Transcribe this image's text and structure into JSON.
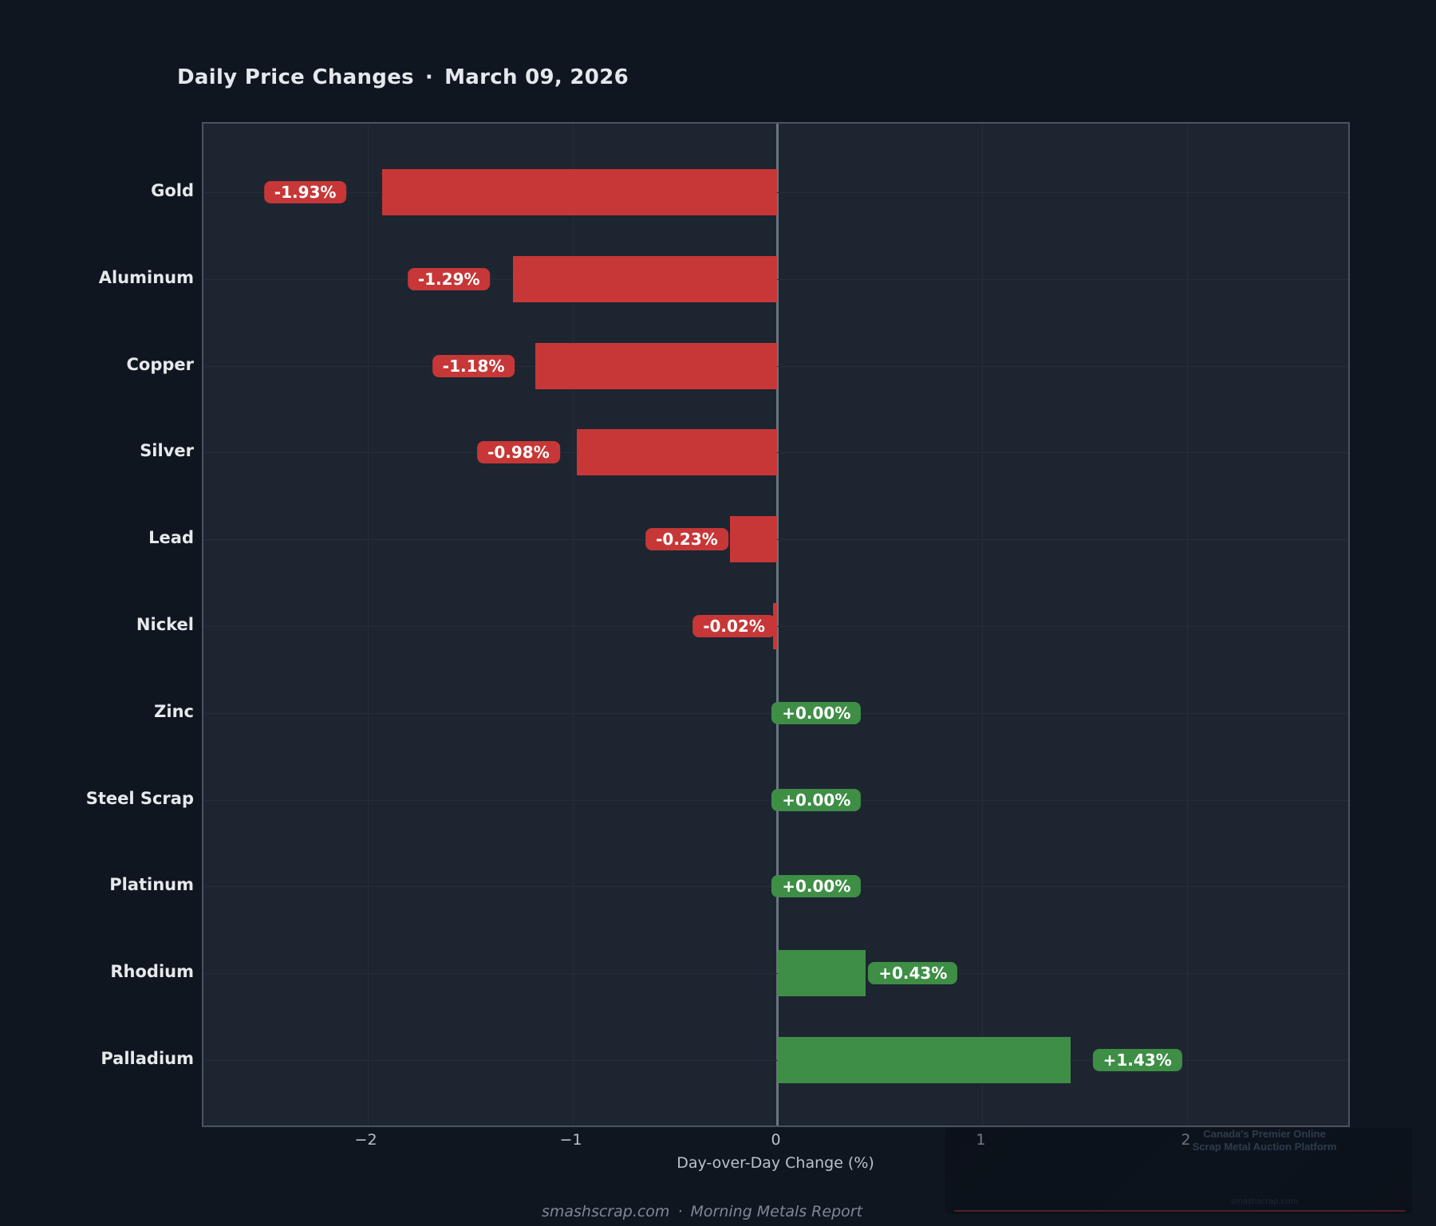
{
  "header": {
    "title": "Daily Price Changes",
    "separator": "·",
    "date": "March 09, 2026"
  },
  "chart_data": {
    "type": "bar",
    "orientation": "horizontal",
    "title": "Daily Price Changes · March 09, 2026",
    "categories": [
      "Gold",
      "Aluminum",
      "Copper",
      "Silver",
      "Lead",
      "Nickel",
      "Zinc",
      "Steel Scrap",
      "Platinum",
      "Rhodium",
      "Palladium"
    ],
    "values": [
      -1.93,
      -1.29,
      -1.18,
      -0.98,
      -0.23,
      -0.02,
      0.0,
      0.0,
      0.0,
      0.43,
      1.43
    ],
    "labels": [
      "-1.93%",
      "-1.29%",
      "-1.18%",
      "-0.98%",
      "-0.23%",
      "-0.02%",
      "+0.00%",
      "+0.00%",
      "+0.00%",
      "+0.43%",
      "+1.43%"
    ],
    "xlabel": "Day-over-Day Change (%)",
    "xlim": [
      -2.8,
      2.8
    ],
    "xticks": [
      -2,
      -1,
      0,
      1,
      2
    ],
    "xtick_labels": [
      "−2",
      "−1",
      "0",
      "1",
      "2"
    ],
    "grid": true,
    "legend": "none",
    "colors": {
      "negative": "#c73737",
      "positive": "#3e8e46",
      "page_background": "#0f1620",
      "plot_background": "#1d2530",
      "zero_line": "#6a7482",
      "grid_line": "#252e3a"
    }
  },
  "footer": {
    "site": "smashscrap.com",
    "separator": "·",
    "report": "Morning Metals Report"
  },
  "watermark": {
    "line1": "Canada's Premier Online",
    "line2": "Scrap Metal Auction Platform",
    "brand": "smashscrap.com"
  }
}
